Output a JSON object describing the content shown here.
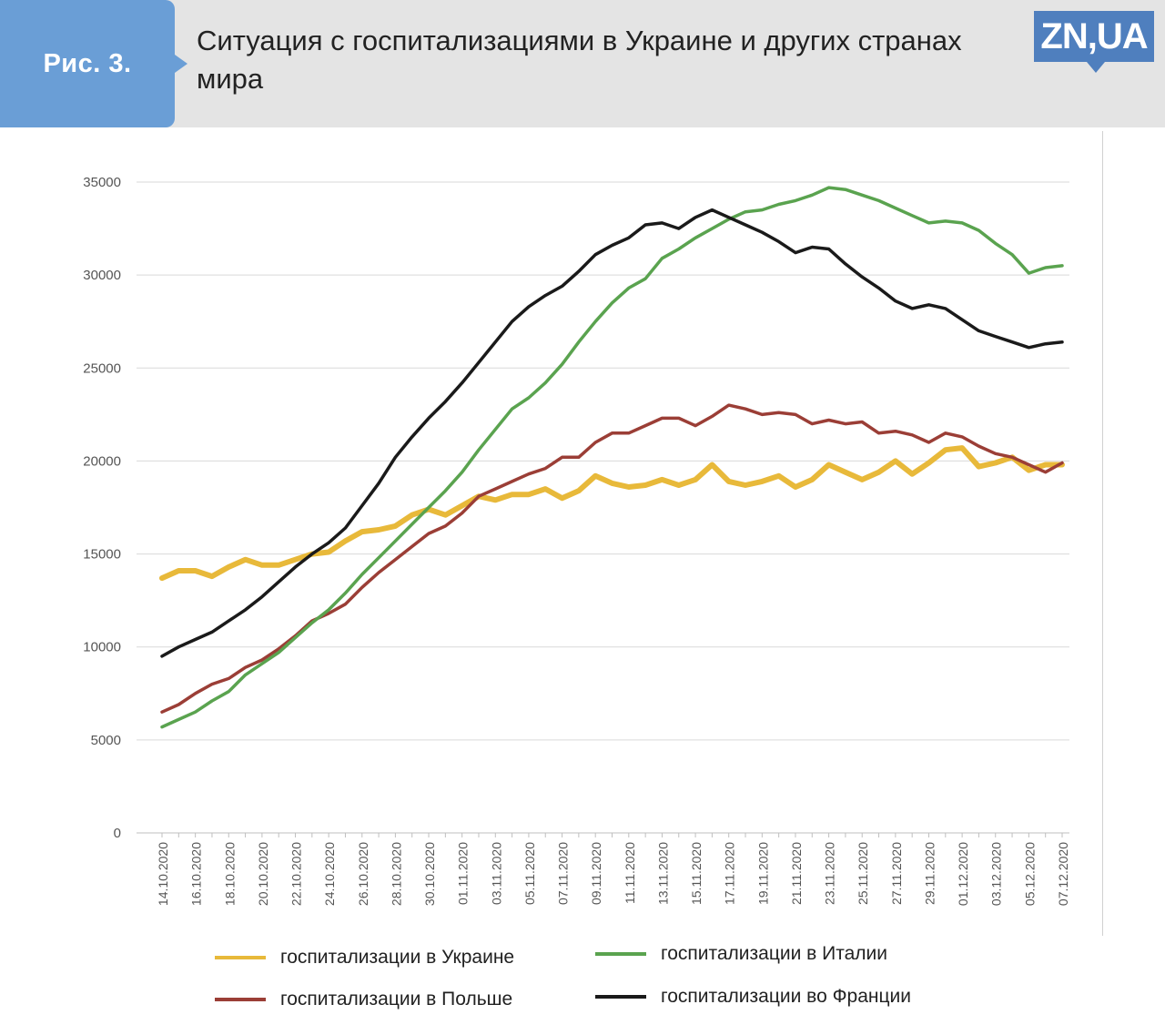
{
  "header": {
    "figure_label": "Рис. 3.",
    "title": "Ситуация с госпитализациями в Украине и других странах мира",
    "logo_text": "ZN,UA"
  },
  "colors": {
    "ukraine": "#e8b93a",
    "poland": "#9b3e36",
    "italy": "#5aa34f",
    "france": "#1a1a1a",
    "header_bg": "#e4e4e4",
    "badge_bg": "#6a9ed6",
    "logo_bg": "#4f7fbe"
  },
  "chart_data": {
    "type": "line",
    "title": "",
    "xlabel": "",
    "ylabel": "",
    "ylim": [
      0,
      35000
    ],
    "yticks": [
      0,
      5000,
      10000,
      15000,
      20000,
      25000,
      30000,
      35000
    ],
    "grid": true,
    "legend_position": "bottom",
    "x": [
      "14.10.2020",
      "15.10.2020",
      "16.10.2020",
      "17.10.2020",
      "18.10.2020",
      "19.10.2020",
      "20.10.2020",
      "21.10.2020",
      "22.10.2020",
      "23.10.2020",
      "24.10.2020",
      "25.10.2020",
      "26.10.2020",
      "27.10.2020",
      "28.10.2020",
      "29.10.2020",
      "30.10.2020",
      "31.10.2020",
      "01.11.2020",
      "02.11.2020",
      "03.11.2020",
      "04.11.2020",
      "05.11.2020",
      "06.11.2020",
      "07.11.2020",
      "08.11.2020",
      "09.11.2020",
      "10.11.2020",
      "11.11.2020",
      "12.11.2020",
      "13.11.2020",
      "14.11.2020",
      "15.11.2020",
      "16.11.2020",
      "17.11.2020",
      "18.11.2020",
      "19.11.2020",
      "20.11.2020",
      "21.11.2020",
      "22.11.2020",
      "23.11.2020",
      "24.11.2020",
      "25.11.2020",
      "26.11.2020",
      "27.11.2020",
      "28.11.2020",
      "29.11.2020",
      "30.11.2020",
      "01.12.2020",
      "02.12.2020",
      "03.12.2020",
      "04.12.2020",
      "05.12.2020",
      "06.12.2020",
      "07.12.2020"
    ],
    "tick_labels": [
      "14.10.2020",
      "16.10.2020",
      "18.10.2020",
      "20.10.2020",
      "22.10.2020",
      "24.10.2020",
      "26.10.2020",
      "28.10.2020",
      "30.10.2020",
      "01.11.2020",
      "03.11.2020",
      "05.11.2020",
      "07.11.2020",
      "09.11.2020",
      "11.11.2020",
      "13.11.2020",
      "15.11.2020",
      "17.11.2020",
      "19.11.2020",
      "21.11.2020",
      "23.11.2020",
      "25.11.2020",
      "27.11.2020",
      "29.11.2020",
      "01.12.2020",
      "03.12.2020",
      "05.12.2020",
      "07.12.2020"
    ],
    "series": [
      {
        "key": "ukraine",
        "name": "госпитализации в Украине",
        "values": [
          13700,
          14100,
          14100,
          13800,
          14300,
          14700,
          14400,
          14400,
          14700,
          15000,
          15100,
          15700,
          16200,
          16300,
          16500,
          17100,
          17400,
          17100,
          17600,
          18100,
          17900,
          18200,
          18200,
          18500,
          18000,
          18400,
          19200,
          18800,
          18600,
          18700,
          19000,
          18700,
          19000,
          19800,
          18900,
          18700,
          18900,
          19200,
          18600,
          19000,
          19800,
          19400,
          19000,
          19400,
          20000,
          19300,
          19900,
          20600,
          20700,
          19700,
          19900,
          20200,
          19500,
          19800,
          19800
        ]
      },
      {
        "key": "poland",
        "name": "госпитализации в Польше",
        "values": [
          6500,
          6900,
          7500,
          8000,
          8300,
          8900,
          9300,
          9900,
          10600,
          11400,
          11800,
          12300,
          13200,
          14000,
          14700,
          15400,
          16100,
          16500,
          17200,
          18100,
          18500,
          18900,
          19300,
          19600,
          20200,
          20200,
          21000,
          21500,
          21500,
          21900,
          22300,
          22300,
          21900,
          22400,
          23000,
          22800,
          22500,
          22600,
          22500,
          22000,
          22200,
          22000,
          22100,
          21500,
          21600,
          21400,
          21000,
          21500,
          21300,
          20800,
          20400,
          20200,
          19800,
          19400,
          19900
        ]
      },
      {
        "key": "italy",
        "name": "госпитализации  в Италии",
        "values": [
          5700,
          6100,
          6500,
          7100,
          7600,
          8500,
          9100,
          9700,
          10500,
          11300,
          12000,
          12900,
          13900,
          14800,
          15700,
          16600,
          17500,
          18400,
          19400,
          20600,
          21700,
          22800,
          23400,
          24200,
          25200,
          26400,
          27500,
          28500,
          29300,
          29800,
          30900,
          31400,
          32000,
          32500,
          33000,
          33400,
          33500,
          33800,
          34000,
          34300,
          34700,
          34600,
          34300,
          34000,
          33600,
          33200,
          32800,
          32900,
          32800,
          32400,
          31700,
          31100,
          30100,
          30400,
          30500
        ]
      },
      {
        "key": "france",
        "name": "госпитализации  во Франции",
        "values": [
          9500,
          10000,
          10400,
          10800,
          11400,
          12000,
          12700,
          13500,
          14300,
          15000,
          15600,
          16400,
          17600,
          18800,
          20200,
          21300,
          22300,
          23200,
          24200,
          25300,
          26400,
          27500,
          28300,
          28900,
          29400,
          30200,
          31100,
          31600,
          32000,
          32700,
          32800,
          32500,
          33100,
          33500,
          33100,
          32700,
          32300,
          31800,
          31200,
          31500,
          31400,
          30600,
          29900,
          29300,
          28600,
          28200,
          28400,
          28200,
          27600,
          27000,
          26700,
          26400,
          26100,
          26300,
          26400
        ]
      }
    ]
  }
}
